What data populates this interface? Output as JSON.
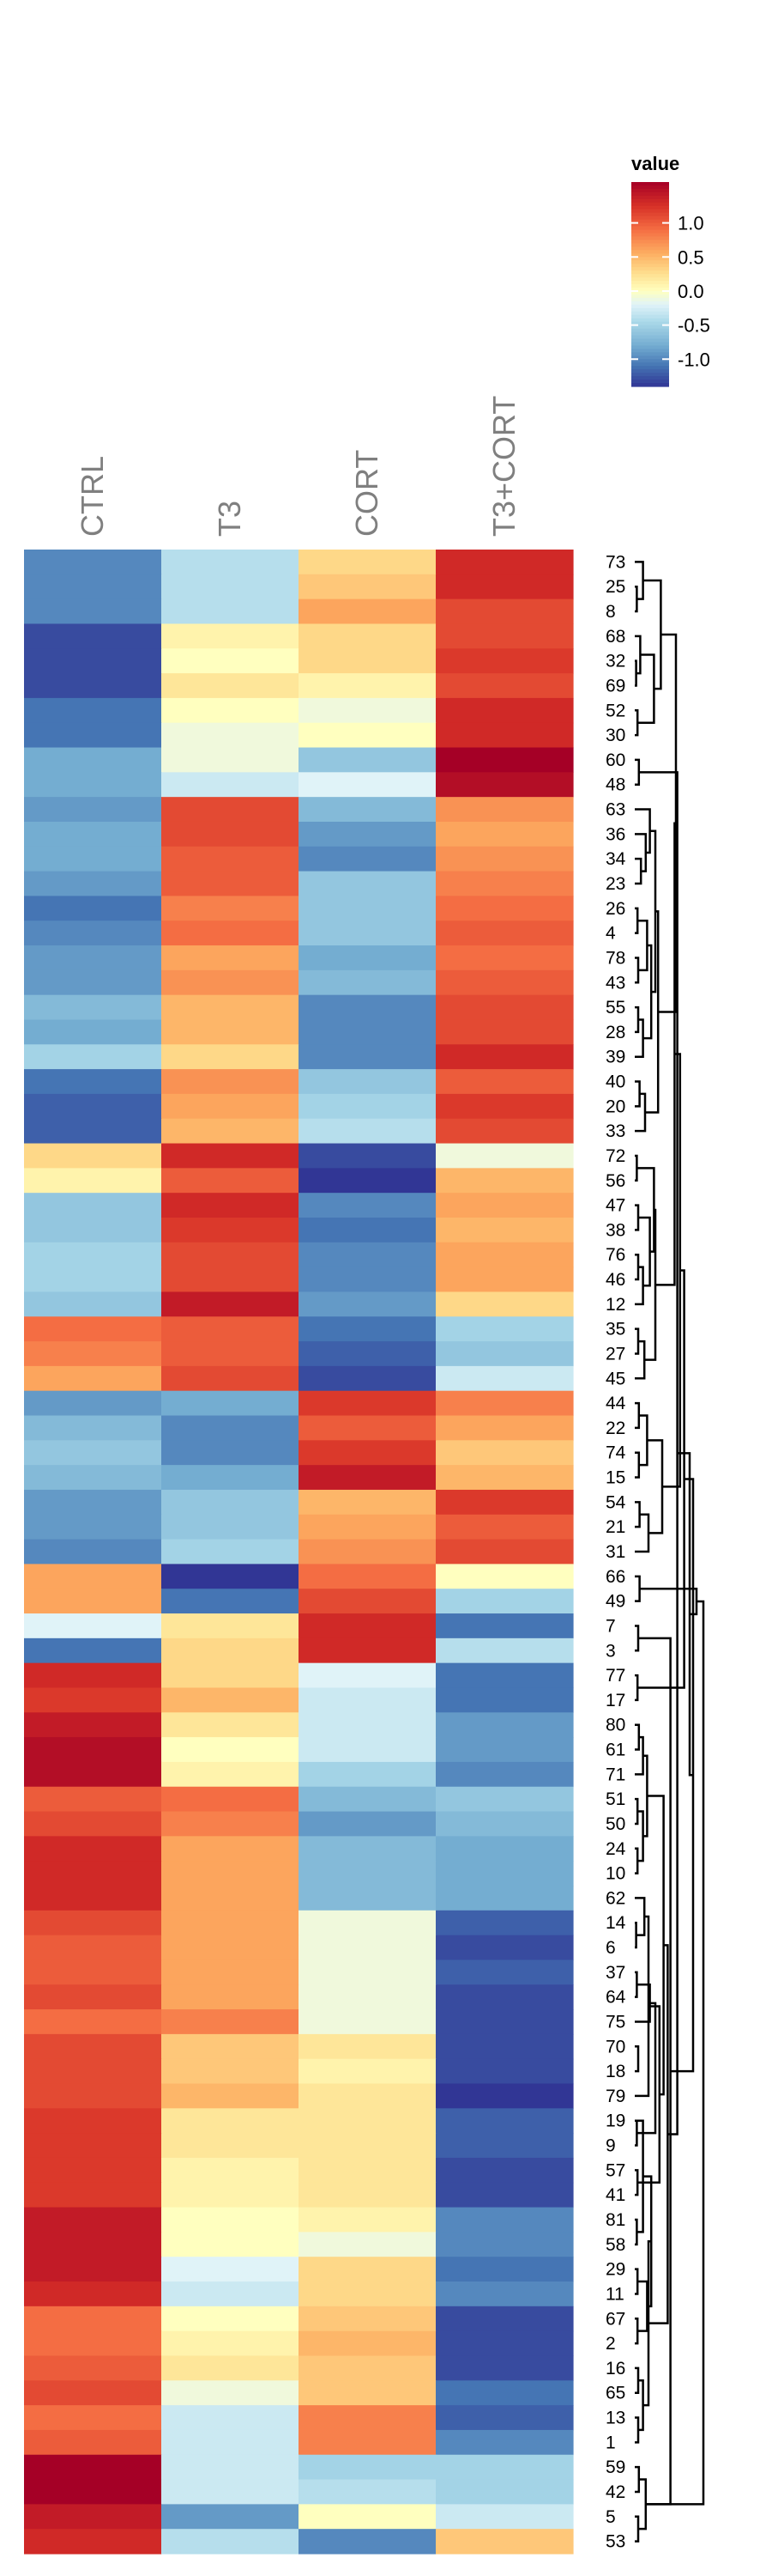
{
  "chart_data": {
    "type": "heatmap",
    "columns": [
      "CTRL",
      "T3",
      "CORT",
      "T3+CORT"
    ],
    "rows": [
      "73",
      "25",
      "8",
      "68",
      "32",
      "69",
      "52",
      "30",
      "60",
      "48",
      "63",
      "36",
      "34",
      "23",
      "26",
      "4",
      "78",
      "43",
      "55",
      "28",
      "39",
      "40",
      "20",
      "33",
      "72",
      "56",
      "47",
      "38",
      "76",
      "46",
      "12",
      "35",
      "27",
      "45",
      "44",
      "22",
      "74",
      "15",
      "54",
      "21",
      "31",
      "66",
      "49",
      "7",
      "3",
      "77",
      "17",
      "80",
      "61",
      "71",
      "51",
      "50",
      "24",
      "10",
      "62",
      "14",
      "6",
      "37",
      "64",
      "75",
      "70",
      "18",
      "79",
      "19",
      "9",
      "57",
      "41",
      "81",
      "58",
      "29",
      "11",
      "67",
      "2",
      "16",
      "65",
      "13",
      "1",
      "59",
      "42",
      "5",
      "53"
    ],
    "values": [
      [
        -1.0,
        -0.4,
        0.3,
        1.3
      ],
      [
        -1.0,
        -0.4,
        0.4,
        1.3
      ],
      [
        -1.0,
        -0.4,
        0.6,
        1.1
      ],
      [
        -1.3,
        0.1,
        0.3,
        1.1
      ],
      [
        -1.3,
        0.0,
        0.3,
        1.2
      ],
      [
        -1.3,
        0.2,
        0.1,
        1.1
      ],
      [
        -1.1,
        0.0,
        -0.1,
        1.3
      ],
      [
        -1.1,
        -0.1,
        0.0,
        1.3
      ],
      [
        -0.8,
        -0.1,
        -0.6,
        1.6
      ],
      [
        -0.8,
        -0.3,
        -0.2,
        1.5
      ],
      [
        -0.9,
        1.1,
        -0.7,
        0.7
      ],
      [
        -0.8,
        1.1,
        -0.9,
        0.6
      ],
      [
        -0.8,
        1.0,
        -1.0,
        0.7
      ],
      [
        -0.9,
        1.0,
        -0.6,
        0.8
      ],
      [
        -1.1,
        0.8,
        -0.6,
        0.9
      ],
      [
        -1.0,
        0.9,
        -0.6,
        1.0
      ],
      [
        -0.9,
        0.6,
        -0.8,
        0.9
      ],
      [
        -0.9,
        0.7,
        -0.7,
        1.0
      ],
      [
        -0.7,
        0.5,
        -1.0,
        1.1
      ],
      [
        -0.8,
        0.5,
        -1.0,
        1.1
      ],
      [
        -0.5,
        0.3,
        -1.0,
        1.3
      ],
      [
        -1.1,
        0.7,
        -0.6,
        1.0
      ],
      [
        -1.2,
        0.6,
        -0.5,
        1.2
      ],
      [
        -1.2,
        0.5,
        -0.4,
        1.1
      ],
      [
        0.3,
        1.3,
        -1.3,
        -0.1
      ],
      [
        0.1,
        1.0,
        -1.4,
        0.5
      ],
      [
        -0.6,
        1.3,
        -1.0,
        0.6
      ],
      [
        -0.6,
        1.2,
        -1.1,
        0.5
      ],
      [
        -0.5,
        1.1,
        -1.0,
        0.6
      ],
      [
        -0.5,
        1.1,
        -1.0,
        0.6
      ],
      [
        -0.6,
        1.4,
        -0.9,
        0.3
      ],
      [
        0.9,
        1.0,
        -1.1,
        -0.5
      ],
      [
        0.8,
        1.0,
        -1.2,
        -0.6
      ],
      [
        0.6,
        1.1,
        -1.3,
        -0.3
      ],
      [
        -0.9,
        -0.8,
        1.2,
        0.8
      ],
      [
        -0.7,
        -1.0,
        1.0,
        0.6
      ],
      [
        -0.6,
        -1.0,
        1.2,
        0.4
      ],
      [
        -0.7,
        -0.8,
        1.4,
        0.5
      ],
      [
        -0.9,
        -0.6,
        0.5,
        1.2
      ],
      [
        -0.9,
        -0.6,
        0.6,
        1.0
      ],
      [
        -1.0,
        -0.5,
        0.7,
        1.1
      ],
      [
        0.6,
        -1.4,
        0.9,
        0.0
      ],
      [
        0.6,
        -1.1,
        1.1,
        -0.5
      ],
      [
        -0.2,
        0.2,
        1.3,
        -1.1
      ],
      [
        -1.1,
        0.3,
        1.3,
        -0.4
      ],
      [
        1.3,
        0.3,
        -0.2,
        -1.1
      ],
      [
        1.2,
        0.5,
        -0.3,
        -1.1
      ],
      [
        1.4,
        0.2,
        -0.3,
        -0.9
      ],
      [
        1.5,
        0.0,
        -0.3,
        -0.9
      ],
      [
        1.5,
        0.1,
        -0.5,
        -1.0
      ],
      [
        1.0,
        0.9,
        -0.7,
        -0.6
      ],
      [
        1.1,
        0.8,
        -0.9,
        -0.7
      ],
      [
        1.3,
        0.6,
        -0.7,
        -0.8
      ],
      [
        1.3,
        0.6,
        -0.7,
        -0.8
      ],
      [
        1.3,
        0.6,
        -0.7,
        -0.8
      ],
      [
        1.1,
        0.6,
        -0.1,
        -1.2
      ],
      [
        1.0,
        0.6,
        -0.1,
        -1.3
      ],
      [
        1.0,
        0.6,
        -0.1,
        -1.2
      ],
      [
        1.1,
        0.6,
        -0.1,
        -1.3
      ],
      [
        0.9,
        0.8,
        -0.1,
        -1.3
      ],
      [
        1.1,
        0.4,
        0.2,
        -1.3
      ],
      [
        1.1,
        0.4,
        0.1,
        -1.3
      ],
      [
        1.1,
        0.5,
        0.2,
        -1.4
      ],
      [
        1.2,
        0.2,
        0.2,
        -1.2
      ],
      [
        1.2,
        0.2,
        0.2,
        -1.2
      ],
      [
        1.2,
        0.1,
        0.2,
        -1.3
      ],
      [
        1.2,
        0.1,
        0.2,
        -1.3
      ],
      [
        1.4,
        0.0,
        0.1,
        -1.0
      ],
      [
        1.4,
        0.0,
        -0.1,
        -1.0
      ],
      [
        1.4,
        -0.2,
        0.3,
        -1.1
      ],
      [
        1.3,
        -0.3,
        0.3,
        -1.0
      ],
      [
        0.9,
        0.0,
        0.4,
        -1.3
      ],
      [
        0.9,
        0.1,
        0.5,
        -1.3
      ],
      [
        1.0,
        0.2,
        0.4,
        -1.3
      ],
      [
        1.1,
        -0.1,
        0.4,
        -1.1
      ],
      [
        0.9,
        -0.3,
        0.8,
        -1.2
      ],
      [
        1.0,
        -0.3,
        0.8,
        -1.0
      ],
      [
        1.6,
        -0.3,
        -0.5,
        -0.5
      ],
      [
        1.6,
        -0.3,
        -0.4,
        -0.5
      ],
      [
        1.4,
        -0.9,
        0.0,
        -0.3
      ],
      [
        1.3,
        -0.4,
        -1.0,
        0.4
      ]
    ],
    "dendrogram_merges": [
      [
        -6,
        -5
      ],
      [
        -2,
        -3
      ],
      [
        -7,
        -8
      ],
      [
        -9,
        -10
      ],
      [
        -13,
        -14
      ],
      [
        -15,
        -16
      ],
      [
        -17,
        -18
      ],
      [
        -19,
        -20
      ],
      [
        -22,
        -23
      ],
      [
        -25,
        -26
      ],
      [
        -27,
        -28
      ],
      [
        -29,
        -30
      ],
      [
        -32,
        -33
      ],
      [
        -35,
        -36
      ],
      [
        -37,
        -38
      ],
      [
        -39,
        -40
      ],
      [
        -42,
        -43
      ],
      [
        -44,
        -45
      ],
      [
        -46,
        -47
      ],
      [
        -48,
        -49
      ],
      [
        -51,
        -52
      ],
      [
        -53,
        -54
      ],
      [
        -56,
        -57
      ],
      [
        -58,
        -59
      ],
      [
        -61,
        -62
      ],
      [
        -64,
        -65
      ],
      [
        -66,
        -67
      ],
      [
        -68,
        -69
      ],
      [
        -70,
        -71
      ],
      [
        -72,
        -73
      ],
      [
        -74,
        -75
      ],
      [
        -76,
        -77
      ],
      [
        -78,
        -79
      ],
      [
        -80,
        -81
      ],
      [
        -4,
        1
      ],
      [
        -1,
        2
      ],
      [
        35,
        3
      ],
      [
        -12,
        5
      ],
      [
        -11,
        38
      ],
      [
        6,
        7
      ],
      [
        8,
        -21
      ],
      [
        40,
        41
      ],
      [
        39,
        42
      ],
      [
        -24,
        9
      ],
      [
        44,
        43
      ],
      [
        36,
        37
      ],
      [
        -31,
        12
      ],
      [
        11,
        47
      ],
      [
        13,
        -34
      ],
      [
        14,
        15
      ],
      [
        16,
        -41
      ],
      [
        10,
        48
      ],
      [
        52,
        49
      ],
      [
        50,
        51
      ],
      [
        20,
        -50
      ],
      [
        21,
        22
      ],
      [
        55,
        56
      ],
      [
        -55,
        23
      ],
      [
        24,
        -60
      ],
      [
        58,
        -63
      ],
      [
        59,
        26
      ],
      [
        60,
        27
      ],
      [
        28,
        -64
      ],
      [
        29,
        30
      ],
      [
        63,
        64
      ],
      [
        31,
        32
      ],
      [
        65,
        66
      ],
      [
        33,
        34
      ],
      [
        57,
        62
      ],
      [
        69,
        67
      ],
      [
        46,
        45
      ],
      [
        71,
        53
      ],
      [
        72,
        54
      ],
      [
        68,
        18
      ],
      [
        73,
        19
      ],
      [
        75,
        74
      ],
      [
        70,
        4
      ],
      [
        77,
        76
      ],
      [
        78,
        17
      ],
      [
        79,
        68
      ]
    ],
    "dendrogram_heights": [
      0.02,
      0.03,
      0.04,
      0.06,
      0.09,
      0.04,
      0.05,
      0.05,
      0.07,
      0.03,
      0.05,
      0.05,
      0.05,
      0.06,
      0.06,
      0.07,
      0.07,
      0.05,
      0.04,
      0.06,
      0.04,
      0.04,
      0.02,
      0.03,
      0.05,
      0.03,
      0.04,
      0.03,
      0.04,
      0.04,
      0.05,
      0.05,
      0.06,
      0.05,
      0.08,
      0.12,
      0.28,
      0.16,
      0.22,
      0.18,
      0.12,
      0.24,
      0.3,
      0.15,
      0.34,
      0.38,
      0.12,
      0.22,
      0.14,
      0.18,
      0.2,
      0.28,
      0.3,
      0.4,
      0.12,
      0.12,
      0.18,
      0.14,
      0.22,
      0.2,
      0.3,
      0.36,
      0.12,
      0.18,
      0.24,
      0.12,
      0.2,
      0.16,
      0.42,
      0.48,
      0.6,
      0.58,
      0.66,
      0.52,
      0.72,
      0.85,
      0.62,
      0.8,
      0.9,
      1.0
    ],
    "color_scale": {
      "name": "value",
      "domain": [
        -1.4,
        1.6
      ],
      "stops": [
        [
          -1.4,
          "#313695"
        ],
        [
          -1.1,
          "#4575b4"
        ],
        [
          -0.8,
          "#74add1"
        ],
        [
          -0.45,
          "#abd9e9"
        ],
        [
          -0.2,
          "#e0f3f8"
        ],
        [
          0.0,
          "#ffffbf"
        ],
        [
          0.25,
          "#fee090"
        ],
        [
          0.55,
          "#fdae61"
        ],
        [
          0.9,
          "#f46d43"
        ],
        [
          1.25,
          "#d73027"
        ],
        [
          1.6,
          "#a50026"
        ]
      ],
      "ticks": [
        "1.0",
        "0.5",
        "0.0",
        "-0.5",
        "-1.0"
      ],
      "tick_values": [
        1.0,
        0.5,
        0.0,
        -0.5,
        -1.0
      ]
    },
    "legend_title": "value",
    "legend_position": "top-right"
  }
}
